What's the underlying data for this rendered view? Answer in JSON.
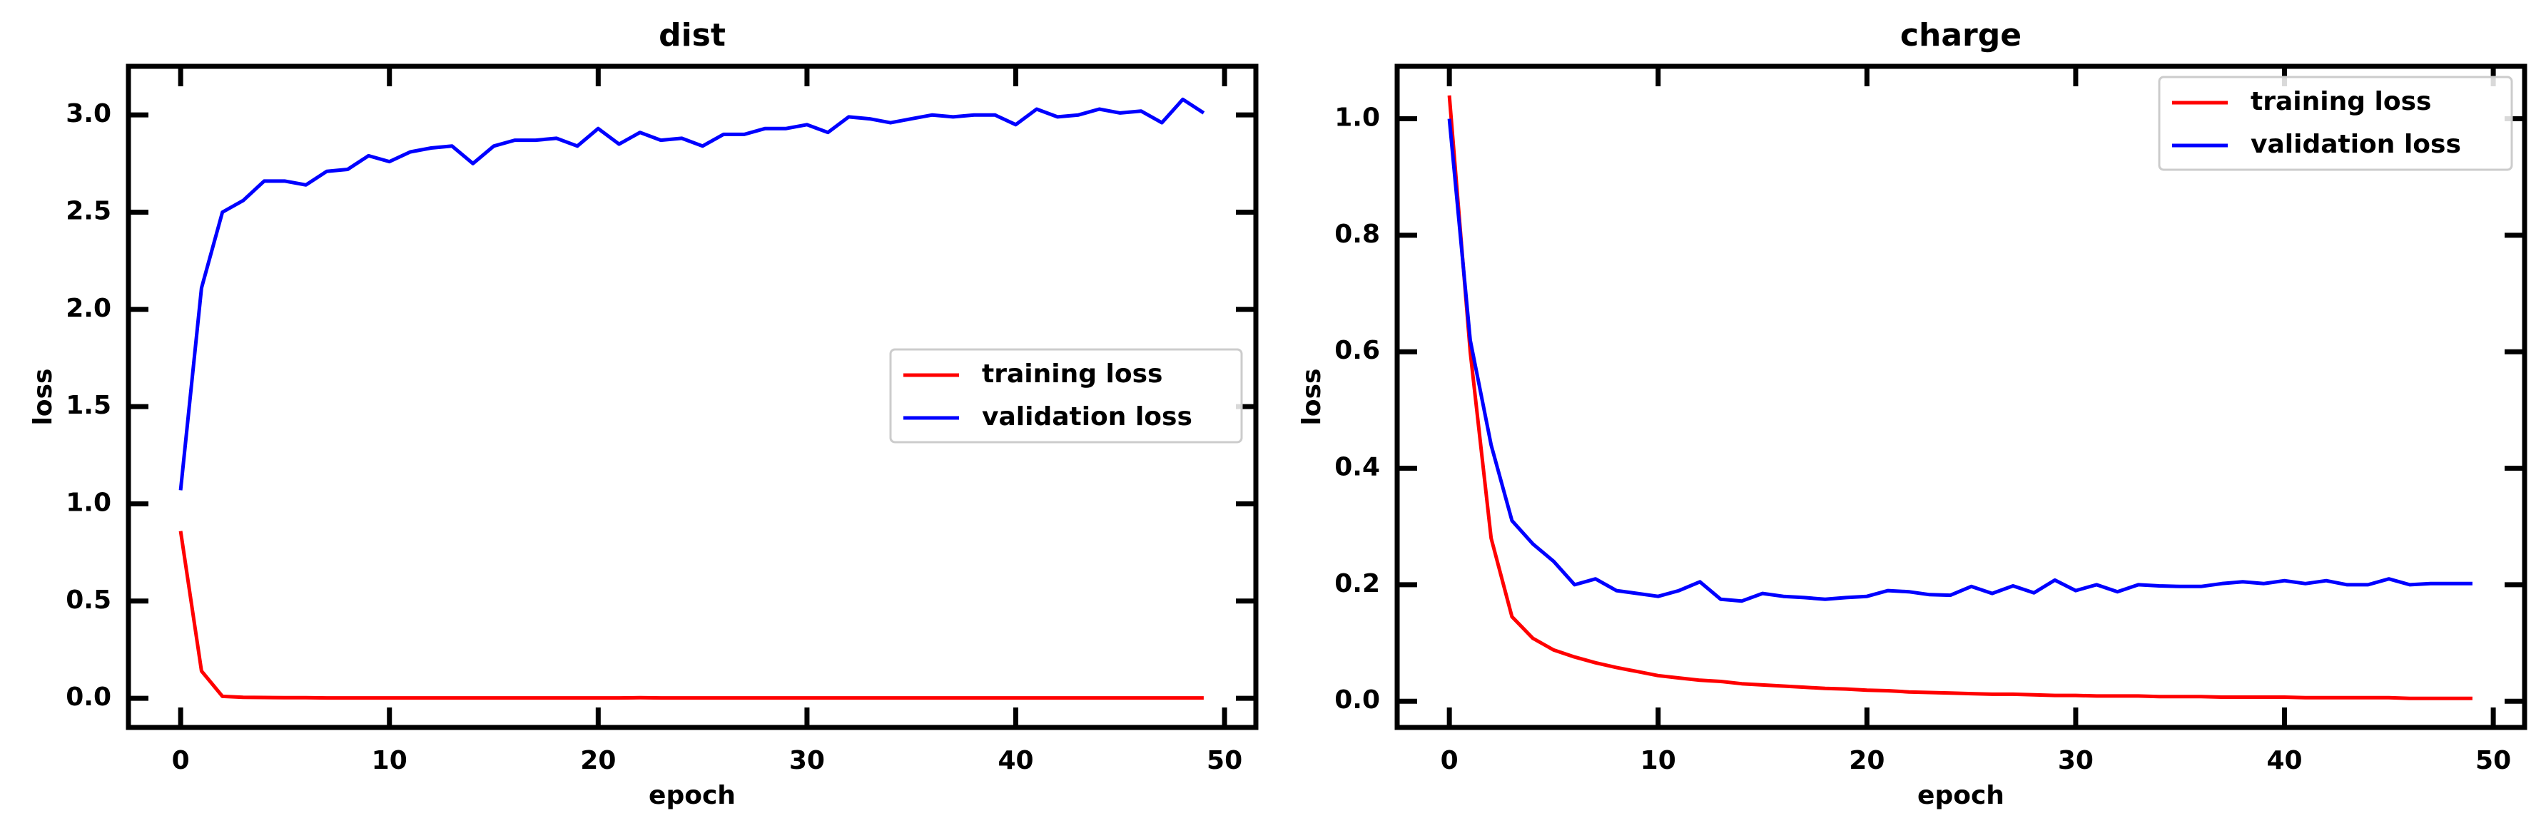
{
  "chart_data": [
    {
      "type": "line",
      "title": "dist",
      "xlabel": "epoch",
      "ylabel": "loss",
      "xlim": [
        -2.5,
        51.5
      ],
      "ylim": [
        -0.15,
        3.25
      ],
      "xticks": [
        0,
        10,
        20,
        30,
        40,
        50
      ],
      "yticks": [
        0.0,
        0.5,
        1.0,
        1.5,
        2.0,
        2.5,
        3.0
      ],
      "ytick_labels": [
        "0.0",
        "0.5",
        "1.0",
        "1.5",
        "2.0",
        "2.5",
        "3.0"
      ],
      "grid": false,
      "legend_position": "center-right",
      "x": [
        0,
        1,
        2,
        3,
        4,
        5,
        6,
        7,
        8,
        9,
        10,
        11,
        12,
        13,
        14,
        15,
        16,
        17,
        18,
        19,
        20,
        21,
        22,
        23,
        24,
        25,
        26,
        27,
        28,
        29,
        30,
        31,
        32,
        33,
        34,
        35,
        36,
        37,
        38,
        39,
        40,
        41,
        42,
        43,
        44,
        45,
        46,
        47,
        48,
        49
      ],
      "series": [
        {
          "name": "training loss",
          "color": "#ff0000",
          "values": [
            0.86,
            0.14,
            0.01,
            0.005,
            0.004,
            0.003,
            0.003,
            0.002,
            0.002,
            0.002,
            0.002,
            0.002,
            0.002,
            0.002,
            0.002,
            0.002,
            0.002,
            0.002,
            0.002,
            0.002,
            0.002,
            0.002,
            0.003,
            0.002,
            0.002,
            0.002,
            0.002,
            0.002,
            0.002,
            0.002,
            0.002,
            0.002,
            0.002,
            0.002,
            0.002,
            0.002,
            0.002,
            0.002,
            0.002,
            0.002,
            0.002,
            0.002,
            0.002,
            0.002,
            0.002,
            0.002,
            0.002,
            0.002,
            0.002,
            0.002
          ]
        },
        {
          "name": "validation loss",
          "color": "#0000ff",
          "values": [
            1.07,
            2.11,
            2.5,
            2.56,
            2.66,
            2.66,
            2.64,
            2.71,
            2.72,
            2.79,
            2.76,
            2.81,
            2.83,
            2.84,
            2.75,
            2.84,
            2.87,
            2.87,
            2.88,
            2.84,
            2.93,
            2.85,
            2.91,
            2.87,
            2.88,
            2.84,
            2.9,
            2.9,
            2.93,
            2.93,
            2.95,
            2.91,
            2.99,
            2.98,
            2.96,
            2.98,
            3.0,
            2.99,
            3.0,
            3.0,
            2.95,
            3.03,
            2.99,
            3.0,
            3.03,
            3.01,
            3.02,
            2.96,
            3.08,
            3.01
          ]
        }
      ]
    },
    {
      "type": "line",
      "title": "charge",
      "xlabel": "epoch",
      "ylabel": "loss",
      "xlim": [
        -2.5,
        51.5
      ],
      "ylim": [
        -0.045,
        1.09
      ],
      "xticks": [
        0,
        10,
        20,
        30,
        40,
        50
      ],
      "yticks": [
        0.0,
        0.2,
        0.4,
        0.6,
        0.8,
        1.0
      ],
      "ytick_labels": [
        "0.0",
        "0.2",
        "0.4",
        "0.6",
        "0.8",
        "1.0"
      ],
      "grid": false,
      "legend_position": "top-right",
      "x": [
        0,
        1,
        2,
        3,
        4,
        5,
        6,
        7,
        8,
        9,
        10,
        11,
        12,
        13,
        14,
        15,
        16,
        17,
        18,
        19,
        20,
        21,
        22,
        23,
        24,
        25,
        26,
        27,
        28,
        29,
        30,
        31,
        32,
        33,
        34,
        35,
        36,
        37,
        38,
        39,
        40,
        41,
        42,
        43,
        44,
        45,
        46,
        47,
        48,
        49
      ],
      "series": [
        {
          "name": "training loss",
          "color": "#ff0000",
          "values": [
            1.04,
            0.6,
            0.28,
            0.145,
            0.108,
            0.088,
            0.076,
            0.066,
            0.058,
            0.051,
            0.044,
            0.04,
            0.036,
            0.034,
            0.03,
            0.028,
            0.026,
            0.024,
            0.022,
            0.021,
            0.019,
            0.018,
            0.016,
            0.015,
            0.014,
            0.013,
            0.012,
            0.012,
            0.011,
            0.01,
            0.01,
            0.009,
            0.009,
            0.009,
            0.008,
            0.008,
            0.008,
            0.007,
            0.007,
            0.007,
            0.007,
            0.006,
            0.006,
            0.006,
            0.006,
            0.006,
            0.005,
            0.005,
            0.005,
            0.005
          ]
        },
        {
          "name": "validation loss",
          "color": "#0000ff",
          "values": [
            1.0,
            0.62,
            0.44,
            0.31,
            0.27,
            0.24,
            0.2,
            0.21,
            0.19,
            0.185,
            0.18,
            0.19,
            0.205,
            0.175,
            0.172,
            0.185,
            0.18,
            0.178,
            0.175,
            0.178,
            0.18,
            0.19,
            0.188,
            0.183,
            0.182,
            0.197,
            0.185,
            0.198,
            0.186,
            0.208,
            0.19,
            0.2,
            0.188,
            0.2,
            0.198,
            0.197,
            0.197,
            0.202,
            0.205,
            0.202,
            0.207,
            0.202,
            0.207,
            0.2,
            0.2,
            0.21,
            0.2,
            0.202,
            0.202,
            0.202
          ]
        }
      ]
    }
  ]
}
